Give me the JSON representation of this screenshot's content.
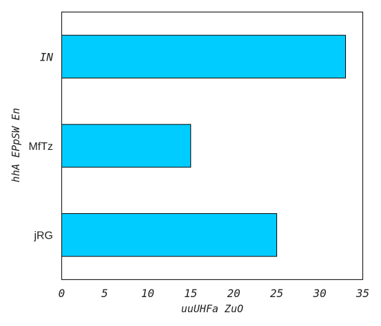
{
  "chart_data": {
    "type": "bar",
    "orientation": "horizontal",
    "categories": [
      "jRG",
      "MfTz",
      "IN"
    ],
    "values": [
      25,
      15,
      33
    ],
    "xlabel": "uuUHFa ZuO",
    "ylabel": "hhA EPpSW En",
    "xlim": [
      0,
      35
    ],
    "xticks": [
      0,
      5,
      10,
      15,
      20,
      25,
      30,
      35
    ],
    "grid": false,
    "bar_color": "#00ccff",
    "edge_color": "#000000"
  }
}
